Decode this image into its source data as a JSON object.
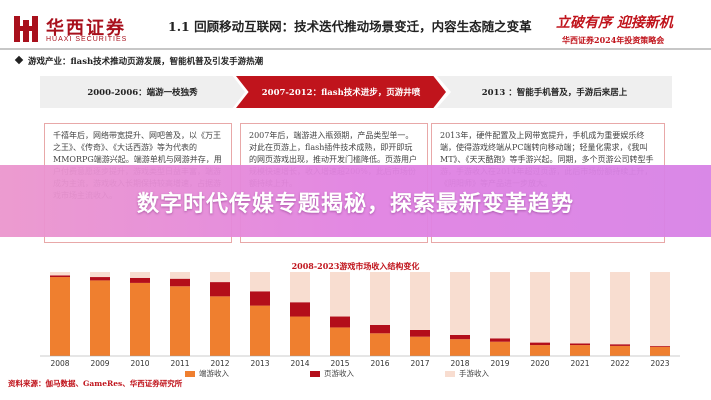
{
  "header": {
    "logo_cn": "华西证券",
    "logo_en": "HUAXI SECURITIES",
    "title": "1.1 回顾移动互联网：技术迭代推动场景变迁，内容生态随之变革",
    "slogan": "立破有序 迎接新机",
    "conference": "华西证券2024年投资策略会"
  },
  "intro": "游戏产业：flash技术推动页游发展，智能机普及引发手游热潮",
  "timeline": [
    {
      "label": "2000-2006：端游一枝独秀"
    },
    {
      "label": "2007-2012：flash技术进步，页游井喷"
    },
    {
      "label": "2013 ：智能手机普及，手游后来居上"
    }
  ],
  "boxes": [
    {
      "text": "千禧年后，网络带宽提升、网吧普及，以《万王之王》、《传奇》、《大话西游》等为代表的MMORPG端游兴起。端游单机与网游并存，用户付费意愿逐步提升，游戏类型日益丰富，端游成为主流，游戏收入长期保持较高增速，占据游戏市场主流收入。"
    },
    {
      "text": "2007年后，端游进入瓶颈期，产品类型单一。对此在页游上，flash插件技术成熟，即开即玩的网页游戏出现，推动开发门槛降低。页游用户规模快速增长，收入增速超200%，此后市场份额持续上升。"
    },
    {
      "text": "2013年，硬件配置及上网带宽提升，手机成为重要娱乐终端，使得游戏终端从PC端转向移动端；轻量化需求，《我叫MT》、《天天酷跑》等手游兴起。同期，多个页游公司转型手游，手游收入在2014年超过页游，此后市场份额持续上升，《阴阳师》等产品进一步放大。"
    }
  ],
  "banner": "数字时代传媒专题揭秘，探索最新变革趋势",
  "chart_data": {
    "type": "bar",
    "title": "2008-2023游戏市场收入结构变化",
    "categories": [
      "2008",
      "2009",
      "2010",
      "2011",
      "2012",
      "2013",
      "2014",
      "2015",
      "2016",
      "2017",
      "2018",
      "2019",
      "2020",
      "2021",
      "2022",
      "2023"
    ],
    "ylim": [
      0,
      100
    ],
    "series": [
      {
        "name": "端游收入",
        "color": "#ef7f2f",
        "values": [
          94,
          90,
          87,
          83,
          71,
          60,
          47,
          34,
          27,
          23,
          20,
          17,
          13,
          13,
          12,
          11
        ]
      },
      {
        "name": "页游收入",
        "color": "#b30e1a",
        "values": [
          2,
          4,
          6,
          9,
          17,
          17,
          17,
          13,
          10,
          8,
          5,
          4,
          3,
          2,
          2,
          1
        ]
      },
      {
        "name": "手游收入",
        "color": "#f8ddd0",
        "values": [
          4,
          6,
          7,
          8,
          12,
          23,
          36,
          53,
          63,
          69,
          75,
          79,
          84,
          85,
          86,
          88
        ]
      }
    ]
  },
  "source": "资料来源：伽马数据、GameRes、华西证券研究所"
}
